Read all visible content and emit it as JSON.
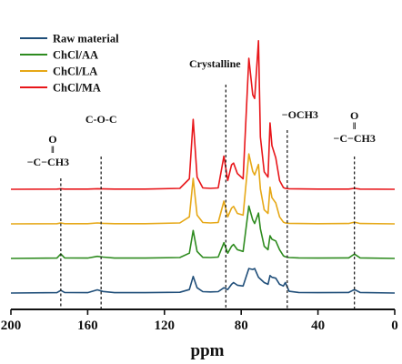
{
  "chart_data": {
    "type": "line",
    "title": "",
    "xlabel": "ppm",
    "ylabel": "",
    "xlim": [
      200,
      0
    ],
    "x_reversed": true,
    "x_ticks": [
      200,
      160,
      120,
      80,
      40,
      0
    ],
    "x_tick_labels": [
      "200",
      "160",
      "120",
      "80",
      "40",
      "0"
    ],
    "grid": false,
    "legend_position": "top-left",
    "stacked_offset": true,
    "series": [
      {
        "name": "Raw material",
        "color": "#1f4e79",
        "points": [
          [
            200,
            0
          ],
          [
            176,
            0.2
          ],
          [
            174,
            1.5
          ],
          [
            172,
            0.3
          ],
          [
            160,
            0.2
          ],
          [
            155,
            1.8
          ],
          [
            152,
            0.9
          ],
          [
            146,
            0.2
          ],
          [
            130,
            0.2
          ],
          [
            112,
            0.4
          ],
          [
            107,
            2.0
          ],
          [
            105,
            9.5
          ],
          [
            103,
            3.0
          ],
          [
            100,
            0.8
          ],
          [
            96,
            0.6
          ],
          [
            92,
            0.8
          ],
          [
            89,
            3.0
          ],
          [
            87,
            2.0
          ],
          [
            85,
            5.0
          ],
          [
            84,
            6.0
          ],
          [
            82,
            4.5
          ],
          [
            79,
            4.0
          ],
          [
            76,
            14.0
          ],
          [
            74,
            13.5
          ],
          [
            73,
            14.0
          ],
          [
            71,
            9.0
          ],
          [
            70,
            8.0
          ],
          [
            68,
            6.0
          ],
          [
            66,
            5.0
          ],
          [
            65,
            10.0
          ],
          [
            64,
            9.0
          ],
          [
            62,
            8.5
          ],
          [
            60,
            5.0
          ],
          [
            58,
            4.0
          ],
          [
            57,
            6.0
          ],
          [
            55,
            1.0
          ],
          [
            50,
            0.3
          ],
          [
            40,
            0.2
          ],
          [
            24,
            0.3
          ],
          [
            21,
            2.0
          ],
          [
            18,
            0.3
          ],
          [
            0,
            0
          ]
        ]
      },
      {
        "name": "ChCl/AA",
        "color": "#2e8b1f",
        "points": [
          [
            200,
            0
          ],
          [
            176,
            0.2
          ],
          [
            174,
            2.6
          ],
          [
            172,
            0.3
          ],
          [
            160,
            0.2
          ],
          [
            155,
            1.2
          ],
          [
            152,
            0.8
          ],
          [
            146,
            0.2
          ],
          [
            130,
            0.2
          ],
          [
            112,
            0.5
          ],
          [
            107,
            3.0
          ],
          [
            105,
            16.0
          ],
          [
            103,
            4.0
          ],
          [
            100,
            0.6
          ],
          [
            96,
            0.5
          ],
          [
            92,
            0.8
          ],
          [
            89,
            9.0
          ],
          [
            87,
            3.0
          ],
          [
            85,
            7.0
          ],
          [
            84,
            8.0
          ],
          [
            82,
            5.0
          ],
          [
            79,
            4.0
          ],
          [
            76,
            30.0
          ],
          [
            74,
            22.0
          ],
          [
            73,
            20.0
          ],
          [
            71,
            26.0
          ],
          [
            70,
            17.0
          ],
          [
            68,
            7.0
          ],
          [
            66,
            5.0
          ],
          [
            65,
            13.0
          ],
          [
            64,
            11.0
          ],
          [
            62,
            10.0
          ],
          [
            60,
            5.0
          ],
          [
            58,
            1.5
          ],
          [
            57,
            1.0
          ],
          [
            55,
            0.5
          ],
          [
            50,
            0.3
          ],
          [
            40,
            0.2
          ],
          [
            24,
            0.3
          ],
          [
            21,
            2.5
          ],
          [
            18,
            0.3
          ],
          [
            0,
            0
          ]
        ]
      },
      {
        "name": "ChCl/LA",
        "color": "#e6a817",
        "points": [
          [
            200,
            0
          ],
          [
            176,
            0.1
          ],
          [
            174,
            0.5
          ],
          [
            172,
            0.1
          ],
          [
            160,
            0.1
          ],
          [
            155,
            0.5
          ],
          [
            152,
            0.3
          ],
          [
            146,
            0.1
          ],
          [
            130,
            0.1
          ],
          [
            112,
            0.5
          ],
          [
            107,
            4.0
          ],
          [
            105,
            26.0
          ],
          [
            103,
            5.0
          ],
          [
            100,
            0.8
          ],
          [
            96,
            0.5
          ],
          [
            92,
            0.8
          ],
          [
            89,
            13.0
          ],
          [
            87,
            4.0
          ],
          [
            85,
            9.0
          ],
          [
            84,
            10.0
          ],
          [
            82,
            6.0
          ],
          [
            79,
            5.0
          ],
          [
            76,
            40.0
          ],
          [
            74,
            30.0
          ],
          [
            73,
            28.0
          ],
          [
            71,
            34.0
          ],
          [
            70,
            20.0
          ],
          [
            68,
            8.0
          ],
          [
            66,
            6.0
          ],
          [
            65,
            21.0
          ],
          [
            64,
            15.0
          ],
          [
            62,
            12.0
          ],
          [
            60,
            4.0
          ],
          [
            58,
            1.0
          ],
          [
            57,
            0.5
          ],
          [
            55,
            0.3
          ],
          [
            50,
            0.2
          ],
          [
            40,
            0.1
          ],
          [
            24,
            0.2
          ],
          [
            21,
            1.0
          ],
          [
            18,
            0.2
          ],
          [
            0,
            0
          ]
        ]
      },
      {
        "name": "ChCl/MA",
        "color": "#e8161a",
        "points": [
          [
            200,
            0
          ],
          [
            176,
            0.1
          ],
          [
            174,
            0.3
          ],
          [
            172,
            0.1
          ],
          [
            160,
            0.1
          ],
          [
            155,
            0.3
          ],
          [
            152,
            0.2
          ],
          [
            146,
            0.1
          ],
          [
            130,
            0.1
          ],
          [
            112,
            0.5
          ],
          [
            107,
            6.0
          ],
          [
            105,
            40.0
          ],
          [
            103,
            7.0
          ],
          [
            100,
            0.8
          ],
          [
            96,
            0.5
          ],
          [
            92,
            0.8
          ],
          [
            89,
            19.0
          ],
          [
            87,
            5.0
          ],
          [
            85,
            14.0
          ],
          [
            84,
            15.0
          ],
          [
            82,
            9.0
          ],
          [
            79,
            6.0
          ],
          [
            76,
            75.0
          ],
          [
            74,
            54.0
          ],
          [
            73,
            52.0
          ],
          [
            71,
            85.0
          ],
          [
            70,
            30.0
          ],
          [
            68,
            10.0
          ],
          [
            66,
            7.0
          ],
          [
            65,
            38.0
          ],
          [
            64,
            25.0
          ],
          [
            62,
            18.0
          ],
          [
            60,
            5.0
          ],
          [
            58,
            1.0
          ],
          [
            57,
            0.5
          ],
          [
            55,
            0.3
          ],
          [
            50,
            0.2
          ],
          [
            40,
            0.1
          ],
          [
            24,
            0.1
          ],
          [
            21,
            0.5
          ],
          [
            18,
            0.1
          ],
          [
            0,
            0
          ]
        ]
      }
    ],
    "annotations": [
      {
        "label_lines": [
          "O",
          "‖",
          "−C−CH3"
        ],
        "x": 174
      },
      {
        "label_lines": [
          "C-O-C"
        ],
        "x": 153
      },
      {
        "label_lines": [
          "Crystalline"
        ],
        "x": 88
      },
      {
        "label_lines": [
          "−OCH3"
        ],
        "x": 56
      },
      {
        "label_lines": [
          "O",
          "‖",
          "−C−CH3"
        ],
        "x": 21
      }
    ]
  }
}
